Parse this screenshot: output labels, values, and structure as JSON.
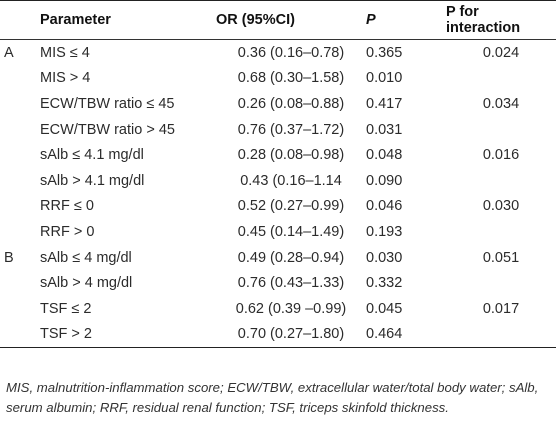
{
  "table": {
    "headers": {
      "group": "",
      "parameter": "Parameter",
      "or": "OR (95%CI)",
      "p": "P",
      "interaction": "P for interaction"
    },
    "rows": [
      {
        "group": "A",
        "parameter": "MIS ≤ 4",
        "or": "0.36 (0.16–0.78)",
        "p": "0.365",
        "interaction": "0.024"
      },
      {
        "group": "",
        "parameter": "MIS > 4",
        "or": "0.68 (0.30–1.58)",
        "p": "0.010",
        "interaction": ""
      },
      {
        "group": "",
        "parameter": "ECW/TBW ratio ≤ 45",
        "or": "0.26 (0.08–0.88)",
        "p": "0.417",
        "interaction": "0.034"
      },
      {
        "group": "",
        "parameter": "ECW/TBW ratio > 45",
        "or": "0.76 (0.37–1.72)",
        "p": "0.031",
        "interaction": ""
      },
      {
        "group": "",
        "parameter": "sAlb ≤ 4.1 mg/dl",
        "or": "0.28 (0.08–0.98)",
        "p": "0.048",
        "interaction": "0.016"
      },
      {
        "group": "",
        "parameter": "sAlb > 4.1 mg/dl",
        "or": "0.43 (0.16–1.14",
        "p": "0.090",
        "interaction": ""
      },
      {
        "group": "",
        "parameter": "RRF ≤ 0",
        "or": "0.52 (0.27–0.99)",
        "p": "0.046",
        "interaction": "0.030"
      },
      {
        "group": "",
        "parameter": "RRF > 0",
        "or": "0.45 (0.14–1.49)",
        "p": "0.193",
        "interaction": ""
      },
      {
        "group": "B",
        "parameter": "sAlb ≤ 4 mg/dl",
        "or": "0.49 (0.28–0.94)",
        "p": "0.030",
        "interaction": "0.051"
      },
      {
        "group": "",
        "parameter": "sAlb > 4 mg/dl",
        "or": "0.76 (0.43–1.33)",
        "p": "0.332",
        "interaction": ""
      },
      {
        "group": "",
        "parameter": "TSF ≤ 2",
        "or": "0.62 (0.39 –0.99)",
        "p": "0.045",
        "interaction": "0.017"
      },
      {
        "group": "",
        "parameter": "TSF > 2",
        "or": "0.70 (0.27–1.80)",
        "p": "0.464",
        "interaction": ""
      }
    ]
  },
  "footnote": "MIS, malnutrition-inflammation score; ECW/TBW, extracellular water/total body water; sAlb, serum albumin; RRF, residual renal function; TSF, triceps skinfold thickness."
}
